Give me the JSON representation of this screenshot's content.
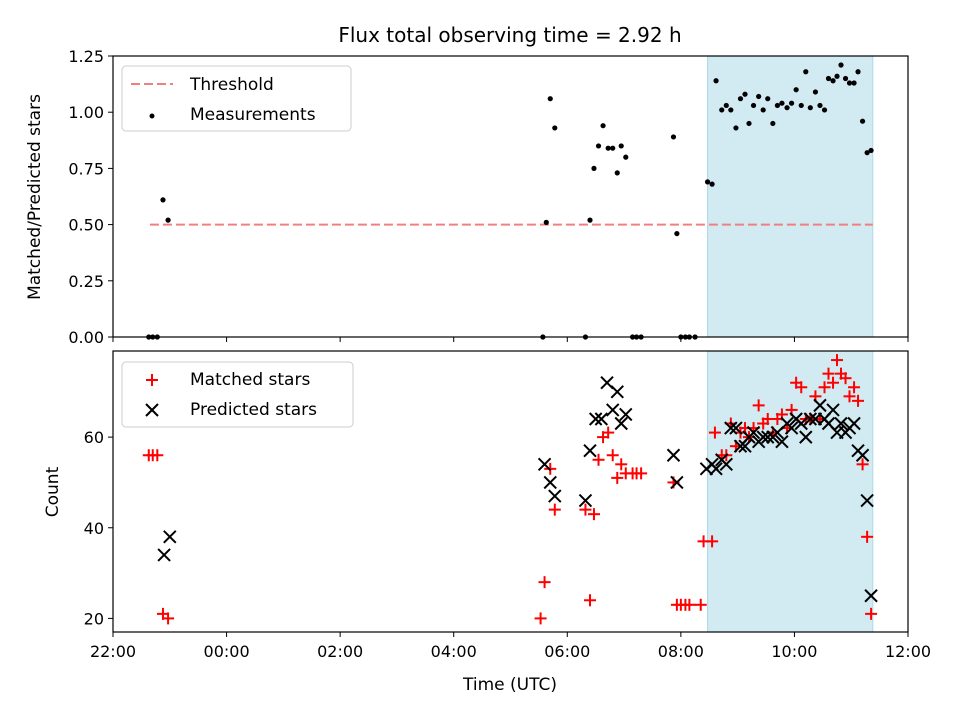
{
  "chart_data": [
    {
      "type": "scatter",
      "title": "Flux total observing time = 2.92 h",
      "xlabel": "",
      "ylabel": "Matched/Predicted stars",
      "xlim": [
        -2,
        12
      ],
      "ylim": [
        0,
        1.25
      ],
      "xticks": [
        -2,
        0,
        2,
        4,
        6,
        8,
        10,
        12
      ],
      "yticks": [
        0.0,
        0.25,
        0.5,
        0.75,
        1.0,
        1.25
      ],
      "ytick_labels": [
        "0.00",
        "0.25",
        "0.50",
        "0.75",
        "1.00",
        "1.25"
      ],
      "shaded_span": [
        8.47,
        11.38
      ],
      "threshold": {
        "name": "Threshold",
        "value": 0.5,
        "x_range": [
          -1.35,
          11.38
        ]
      },
      "legend": [
        "Threshold",
        "Measurements"
      ],
      "legend_position": "upper-left",
      "series": [
        {
          "name": "Measurements",
          "points": [
            [
              -1.37,
              0.0
            ],
            [
              -1.3,
              0.0
            ],
            [
              -1.22,
              0.0
            ],
            [
              -1.12,
              0.61
            ],
            [
              -1.03,
              0.52
            ],
            [
              5.57,
              0.0
            ],
            [
              5.63,
              0.51
            ],
            [
              5.7,
              1.06
            ],
            [
              5.78,
              0.93
            ],
            [
              6.32,
              0.0
            ],
            [
              6.4,
              0.52
            ],
            [
              6.47,
              0.75
            ],
            [
              6.55,
              0.85
            ],
            [
              6.63,
              0.94
            ],
            [
              6.72,
              0.84
            ],
            [
              6.8,
              0.84
            ],
            [
              6.88,
              0.73
            ],
            [
              6.95,
              0.85
            ],
            [
              7.03,
              0.8
            ],
            [
              7.15,
              0.0
            ],
            [
              7.22,
              0.0
            ],
            [
              7.3,
              0.0
            ],
            [
              7.87,
              0.89
            ],
            [
              7.93,
              0.46
            ],
            [
              8.0,
              0.0
            ],
            [
              8.08,
              0.0
            ],
            [
              8.15,
              0.0
            ],
            [
              8.25,
              0.0
            ],
            [
              8.47,
              0.69
            ],
            [
              8.55,
              0.68
            ],
            [
              8.62,
              1.14
            ],
            [
              8.72,
              1.01
            ],
            [
              8.8,
              1.03
            ],
            [
              8.88,
              1.01
            ],
            [
              8.97,
              0.93
            ],
            [
              9.05,
              1.06
            ],
            [
              9.13,
              1.08
            ],
            [
              9.2,
              0.95
            ],
            [
              9.28,
              1.03
            ],
            [
              9.37,
              1.07
            ],
            [
              9.45,
              1.01
            ],
            [
              9.53,
              1.06
            ],
            [
              9.62,
              0.95
            ],
            [
              9.7,
              1.03
            ],
            [
              9.78,
              1.04
            ],
            [
              9.87,
              1.02
            ],
            [
              9.95,
              1.04
            ],
            [
              10.03,
              1.1
            ],
            [
              10.12,
              1.03
            ],
            [
              10.2,
              1.18
            ],
            [
              10.28,
              1.02
            ],
            [
              10.37,
              1.09
            ],
            [
              10.45,
              1.03
            ],
            [
              10.53,
              1.01
            ],
            [
              10.6,
              1.15
            ],
            [
              10.68,
              1.14
            ],
            [
              10.75,
              1.16
            ],
            [
              10.82,
              1.21
            ],
            [
              10.9,
              1.15
            ],
            [
              10.97,
              1.13
            ],
            [
              11.05,
              1.13
            ],
            [
              11.12,
              1.18
            ],
            [
              11.2,
              0.96
            ],
            [
              11.28,
              0.82
            ],
            [
              11.35,
              0.83
            ]
          ]
        }
      ]
    },
    {
      "type": "scatter",
      "title": "",
      "xlabel": "Time (UTC)",
      "ylabel": "Count",
      "xlim": [
        -2,
        12
      ],
      "ylim": [
        17,
        79
      ],
      "xticks": [
        -2,
        0,
        2,
        4,
        6,
        8,
        10,
        12
      ],
      "xtick_labels": [
        "22:00",
        "00:00",
        "02:00",
        "04:00",
        "06:00",
        "08:00",
        "10:00",
        "12:00"
      ],
      "yticks": [
        20,
        40,
        60
      ],
      "ytick_labels": [
        "20",
        "40",
        "60"
      ],
      "shaded_span": [
        8.47,
        11.38
      ],
      "legend": [
        "Matched stars",
        "Predicted stars"
      ],
      "legend_position": "upper-left",
      "series": [
        {
          "name": "Matched stars",
          "marker": "+",
          "points": [
            [
              -1.37,
              56
            ],
            [
              -1.3,
              56
            ],
            [
              -1.22,
              56
            ],
            [
              -1.12,
              21
            ],
            [
              -1.03,
              20
            ],
            [
              5.53,
              20
            ],
            [
              5.6,
              28
            ],
            [
              5.7,
              53
            ],
            [
              5.78,
              44
            ],
            [
              6.32,
              44
            ],
            [
              6.4,
              24
            ],
            [
              6.47,
              43
            ],
            [
              6.55,
              55
            ],
            [
              6.63,
              60
            ],
            [
              6.72,
              61
            ],
            [
              6.8,
              56
            ],
            [
              6.88,
              51
            ],
            [
              6.95,
              54
            ],
            [
              7.03,
              52
            ],
            [
              7.15,
              52
            ],
            [
              7.22,
              52
            ],
            [
              7.3,
              52
            ],
            [
              7.87,
              50
            ],
            [
              7.93,
              23
            ],
            [
              8.0,
              23
            ],
            [
              8.08,
              23
            ],
            [
              8.15,
              23
            ],
            [
              8.35,
              23
            ],
            [
              8.4,
              37
            ],
            [
              8.55,
              37
            ],
            [
              8.6,
              61
            ],
            [
              8.72,
              56
            ],
            [
              8.8,
              56
            ],
            [
              8.88,
              63
            ],
            [
              8.97,
              58
            ],
            [
              9.05,
              61
            ],
            [
              9.13,
              62
            ],
            [
              9.2,
              60
            ],
            [
              9.28,
              62
            ],
            [
              9.37,
              67
            ],
            [
              9.45,
              63
            ],
            [
              9.53,
              64
            ],
            [
              9.62,
              61
            ],
            [
              9.7,
              64
            ],
            [
              9.78,
              65
            ],
            [
              9.87,
              62
            ],
            [
              9.95,
              66
            ],
            [
              10.03,
              72
            ],
            [
              10.12,
              71
            ],
            [
              10.2,
              64
            ],
            [
              10.28,
              64
            ],
            [
              10.37,
              69
            ],
            [
              10.45,
              64
            ],
            [
              10.53,
              71
            ],
            [
              10.6,
              74
            ],
            [
              10.68,
              72
            ],
            [
              10.75,
              77
            ],
            [
              10.82,
              74
            ],
            [
              10.9,
              73
            ],
            [
              10.97,
              69
            ],
            [
              11.05,
              71
            ],
            [
              11.12,
              68
            ],
            [
              11.2,
              54
            ],
            [
              11.28,
              38
            ],
            [
              11.35,
              21
            ]
          ]
        },
        {
          "name": "Predicted stars",
          "marker": "x",
          "points": [
            [
              -1.1,
              34
            ],
            [
              -1.0,
              38
            ],
            [
              5.6,
              54
            ],
            [
              5.7,
              50
            ],
            [
              5.78,
              47
            ],
            [
              6.32,
              46
            ],
            [
              6.4,
              57
            ],
            [
              6.5,
              64
            ],
            [
              6.6,
              64
            ],
            [
              6.7,
              72
            ],
            [
              6.8,
              66
            ],
            [
              6.88,
              70
            ],
            [
              6.95,
              63
            ],
            [
              7.03,
              65
            ],
            [
              7.87,
              56
            ],
            [
              7.93,
              50
            ],
            [
              8.45,
              53
            ],
            [
              8.55,
              54
            ],
            [
              8.62,
              53
            ],
            [
              8.72,
              55
            ],
            [
              8.8,
              54
            ],
            [
              8.88,
              62
            ],
            [
              8.97,
              62
            ],
            [
              9.05,
              58
            ],
            [
              9.13,
              58
            ],
            [
              9.2,
              60
            ],
            [
              9.28,
              61
            ],
            [
              9.37,
              59
            ],
            [
              9.45,
              60
            ],
            [
              9.53,
              60
            ],
            [
              9.62,
              60
            ],
            [
              9.7,
              61
            ],
            [
              9.78,
              59
            ],
            [
              9.87,
              63
            ],
            [
              9.95,
              62
            ],
            [
              10.03,
              64
            ],
            [
              10.12,
              63
            ],
            [
              10.2,
              60
            ],
            [
              10.28,
              64
            ],
            [
              10.37,
              64
            ],
            [
              10.45,
              67
            ],
            [
              10.53,
              64
            ],
            [
              10.6,
              63
            ],
            [
              10.68,
              66
            ],
            [
              10.75,
              61
            ],
            [
              10.82,
              63
            ],
            [
              10.9,
              61
            ],
            [
              10.97,
              62
            ],
            [
              11.05,
              63
            ],
            [
              11.12,
              57
            ],
            [
              11.2,
              56
            ],
            [
              11.28,
              46
            ],
            [
              11.35,
              25
            ]
          ]
        }
      ]
    }
  ],
  "colors": {
    "shade": "#add8e6",
    "threshold": "#f08080",
    "measurements": "#000000",
    "matched": "#ff0000",
    "predicted": "#000000"
  }
}
